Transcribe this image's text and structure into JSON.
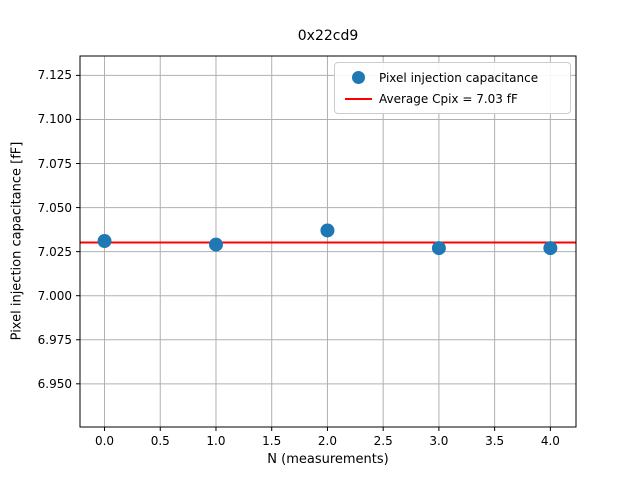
{
  "chart_data": {
    "type": "scatter",
    "title": "0x22cd9",
    "xlabel": "N (measurements)",
    "ylabel": "Pixel injection capacitance [fF]",
    "x": [
      0,
      1,
      2,
      3,
      4
    ],
    "y": [
      7.031,
      7.029,
      7.037,
      7.027,
      7.027
    ],
    "average_line_value": 7.0302,
    "xlim": [
      -0.22,
      4.23
    ],
    "ylim": [
      6.9255,
      7.136
    ],
    "xticks": {
      "values": [
        0.0,
        0.5,
        1.0,
        1.5,
        2.0,
        2.5,
        3.0,
        3.5,
        4.0
      ],
      "labels": [
        "0.0",
        "0.5",
        "1.0",
        "1.5",
        "2.0",
        "2.5",
        "3.0",
        "3.5",
        "4.0"
      ]
    },
    "yticks": {
      "values": [
        6.95,
        6.975,
        7.0,
        7.025,
        7.05,
        7.075,
        7.1,
        7.125
      ],
      "labels": [
        "6.950",
        "6.975",
        "7.000",
        "7.025",
        "7.050",
        "7.075",
        "7.100",
        "7.125"
      ]
    },
    "grid": true,
    "legend": {
      "position": "upper right",
      "entries": [
        {
          "label": "Pixel injection capacitance",
          "marker": "circle",
          "color": "#1f77b4"
        },
        {
          "label": "Average Cpix = 7.03 fF",
          "marker": "line",
          "color": "#ff0000"
        }
      ]
    },
    "colors": {
      "marker": "#1f77b4",
      "average_line": "#ff0000",
      "grid": "#b0b0b0",
      "axes_border": "#000000",
      "background": "#ffffff"
    }
  }
}
